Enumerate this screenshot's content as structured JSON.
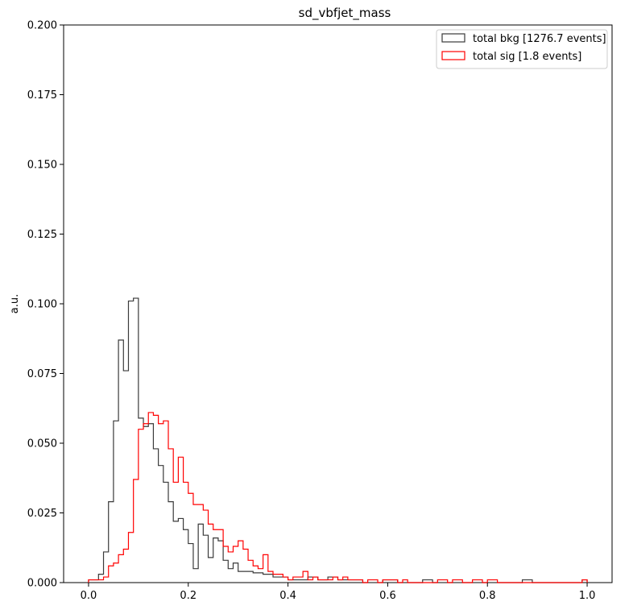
{
  "chart_data": {
    "type": "histogram",
    "title": "sd_vbfjet_mass",
    "xlabel": "",
    "ylabel": "a.u.",
    "xlim": [
      -0.05,
      1.05
    ],
    "ylim": [
      0,
      0.2
    ],
    "xticks": [
      "0.0",
      "0.2",
      "0.4",
      "0.6",
      "0.8",
      "1.0"
    ],
    "yticks": [
      "0.000",
      "0.025",
      "0.050",
      "0.075",
      "0.100",
      "0.125",
      "0.150",
      "0.175",
      "0.200"
    ],
    "grid": false,
    "legend_position": "top-right",
    "bins": {
      "start": 0.0,
      "end": 1.0,
      "count": 100
    },
    "series": [
      {
        "name": "total bkg [1276.7 events]",
        "color": "#3a3a3a",
        "values": [
          0.001,
          0.001,
          0.003,
          0.011,
          0.029,
          0.058,
          0.087,
          0.076,
          0.101,
          0.102,
          0.059,
          0.056,
          0.057,
          0.048,
          0.042,
          0.036,
          0.029,
          0.022,
          0.023,
          0.019,
          0.014,
          0.005,
          0.021,
          0.017,
          0.009,
          0.016,
          0.015,
          0.008,
          0.005,
          0.007,
          0.004,
          0.004,
          0.004,
          0.0035,
          0.0035,
          0.003,
          0.003,
          0.002,
          0.002,
          0.002,
          0.001,
          0.001,
          0.001,
          0.001,
          0.002,
          0.002,
          0.001,
          0.001,
          0.002,
          0.002,
          0.001,
          0.001,
          0.001,
          0.001,
          0.001,
          0.0,
          0.0,
          0.0,
          0.0,
          0.001,
          0.001,
          0.001,
          0.0,
          0.0,
          0.0,
          0.0,
          0.0,
          0.001,
          0.001,
          0.0,
          0.0,
          0.0,
          0.0,
          0.0,
          0.0,
          0.0,
          0.0,
          0.0,
          0.0,
          0.0,
          0.0,
          0.0,
          0.0,
          0.0,
          0.0,
          0.0,
          0.0,
          0.001,
          0.001,
          0.0,
          0.0,
          0.0,
          0.0,
          0.0,
          0.0,
          0.0,
          0.0,
          0.0,
          0.0,
          0.001
        ]
      },
      {
        "name": "total sig [1.8 events]",
        "color": "#ff0000",
        "values": [
          0.001,
          0.001,
          0.001,
          0.002,
          0.006,
          0.007,
          0.01,
          0.012,
          0.018,
          0.037,
          0.055,
          0.057,
          0.061,
          0.06,
          0.057,
          0.058,
          0.048,
          0.036,
          0.045,
          0.036,
          0.032,
          0.028,
          0.028,
          0.026,
          0.021,
          0.019,
          0.019,
          0.013,
          0.011,
          0.013,
          0.015,
          0.012,
          0.008,
          0.006,
          0.005,
          0.01,
          0.004,
          0.003,
          0.003,
          0.002,
          0.001,
          0.002,
          0.002,
          0.004,
          0.001,
          0.002,
          0.001,
          0.001,
          0.001,
          0.002,
          0.001,
          0.002,
          0.001,
          0.001,
          0.001,
          0.0,
          0.001,
          0.001,
          0.0,
          0.001,
          0.001,
          0.001,
          0.0,
          0.001,
          0.0,
          0.0,
          0.0,
          0.0,
          0.0,
          0.0,
          0.001,
          0.001,
          0.0,
          0.001,
          0.001,
          0.0,
          0.0,
          0.001,
          0.001,
          0.0,
          0.001,
          0.001,
          0.0,
          0.0,
          0.0,
          0.0,
          0.0,
          0.0,
          0.0,
          0.0,
          0.0,
          0.0,
          0.0,
          0.0,
          0.0,
          0.0,
          0.0,
          0.0,
          0.0,
          0.001
        ]
      }
    ]
  }
}
